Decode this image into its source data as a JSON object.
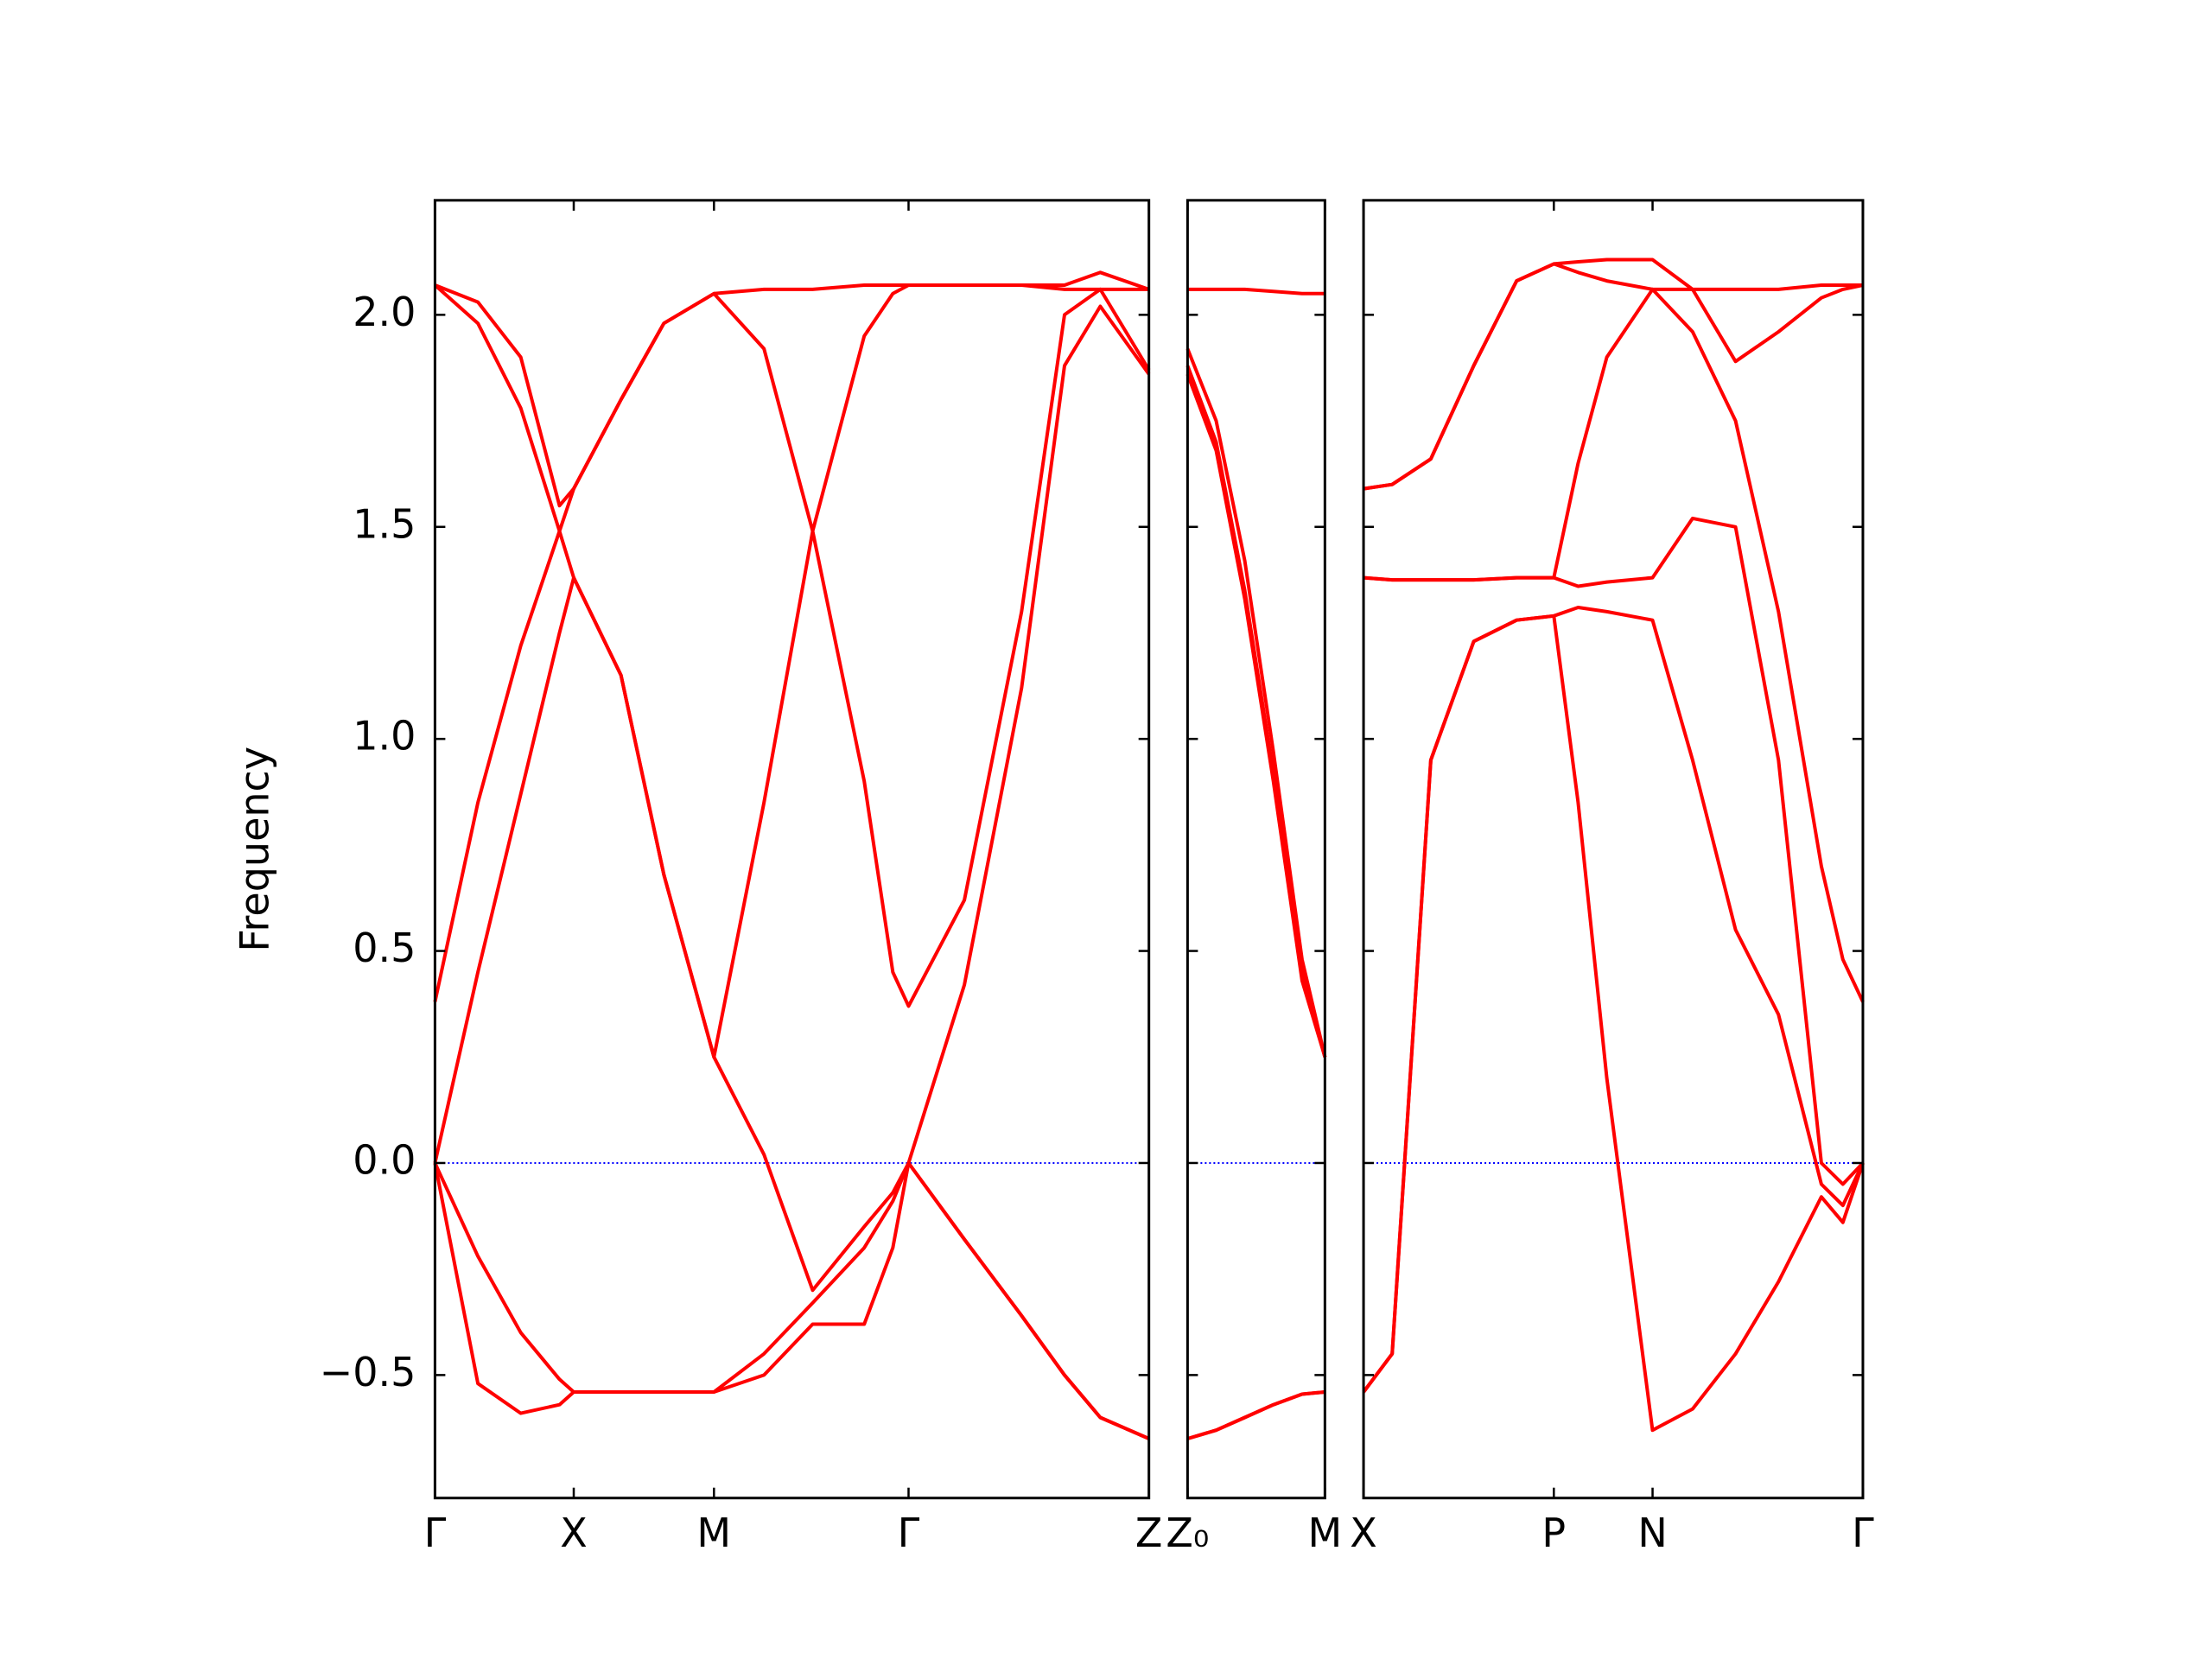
{
  "chart_data": [
    {
      "type": "line",
      "ylabel": "Frequency",
      "x": [
        0,
        0.3,
        0.6,
        0.87,
        0.97,
        1.3,
        1.6,
        1.95,
        2.3,
        2.64,
        3.0,
        3.2,
        3.31,
        3.7,
        4.1,
        4.4,
        4.65,
        4.99
      ],
      "xlim": [
        0,
        4.99
      ],
      "xticks": [
        {
          "value": 0,
          "label": "Γ"
        },
        {
          "value": 0.97,
          "label": "X"
        },
        {
          "value": 1.95,
          "label": "M"
        },
        {
          "value": 3.31,
          "label": "Γ"
        },
        {
          "value": 4.99,
          "label": "Z"
        }
      ],
      "ylim": [
        -0.79,
        2.27
      ],
      "yticks": [
        {
          "value": -0.5,
          "label": "−0.5"
        },
        {
          "value": 0,
          "label": "0.0"
        },
        {
          "value": 0.5,
          "label": "0.5"
        },
        {
          "value": 1,
          "label": "1.0"
        },
        {
          "value": 1.5,
          "label": "1.5"
        },
        {
          "value": 2,
          "label": "2.0"
        }
      ],
      "hline": {
        "y": 0,
        "color": "#0000ff",
        "style": "dotted"
      },
      "series": [
        {
          "color": "#ff0000",
          "values": [
            2.07,
            2.03,
            1.9,
            1.55,
            1.59,
            1.8,
            1.98,
            2.05,
            2.06,
            2.06,
            2.07,
            2.07,
            2.07,
            2.07,
            2.07,
            2.07,
            2.1,
            2.06
          ]
        },
        {
          "color": "#ff0000",
          "values": [
            2.07,
            1.98,
            1.78,
            1.49,
            1.59,
            1.8,
            1.98,
            2.05,
            1.92,
            1.49,
            1.95,
            2.05,
            2.07,
            2.07,
            2.07,
            2.06,
            2.06,
            2.06
          ]
        },
        {
          "color": "#ff0000",
          "values": [
            0.38,
            0.85,
            1.22,
            1.49,
            1.38,
            1.15,
            0.68,
            0.25,
            0.85,
            1.49,
            0.9,
            0.45,
            0.37,
            0.62,
            1.3,
            2.0,
            2.06,
            1.87
          ]
        },
        {
          "color": "#ff0000",
          "values": [
            0,
            0.45,
            0.87,
            1.25,
            1.38,
            1.15,
            0.68,
            0.25,
            0.02,
            -0.3,
            -0.15,
            -0.07,
            0,
            0.42,
            1.12,
            1.88,
            2.02,
            1.86
          ]
        },
        {
          "color": "#ff0000",
          "values": [
            0,
            -0.22,
            -0.4,
            -0.51,
            -0.54,
            -0.54,
            -0.54,
            -0.54,
            -0.45,
            -0.33,
            -0.2,
            -0.09,
            0,
            -0.18,
            -0.36,
            -0.5,
            -0.6,
            -0.65
          ]
        },
        {
          "color": "#ff0000",
          "values": [
            0,
            -0.52,
            -0.59,
            -0.57,
            -0.54,
            -0.54,
            -0.54,
            -0.54,
            -0.5,
            -0.38,
            -0.38,
            -0.2,
            0,
            -0.18,
            -0.36,
            -0.5,
            -0.6,
            -0.65
          ]
        }
      ]
    },
    {
      "type": "line",
      "x": [
        0,
        0.2,
        0.4,
        0.6,
        0.8,
        0.96
      ],
      "xlim": [
        0,
        0.96
      ],
      "xticks": [
        {
          "value": 0,
          "label": "Z₀"
        },
        {
          "value": 0.96,
          "label": "M"
        }
      ],
      "ylim": [
        -0.79,
        2.27
      ],
      "hline": {
        "y": 0,
        "color": "#0000ff",
        "style": "dotted"
      },
      "series": [
        {
          "color": "#ff0000",
          "values": [
            2.06,
            2.06,
            2.06,
            2.055,
            2.05,
            2.05
          ]
        },
        {
          "color": "#ff0000",
          "values": [
            1.92,
            1.75,
            1.42,
            0.97,
            0.48,
            0.25
          ]
        },
        {
          "color": "#ff0000",
          "values": [
            1.88,
            1.7,
            1.35,
            0.92,
            0.45,
            0.25
          ]
        },
        {
          "color": "#ff0000",
          "values": [
            1.86,
            1.68,
            1.33,
            0.9,
            0.43,
            0.25
          ]
        },
        {
          "color": "#ff0000",
          "values": [
            -0.65,
            -0.63,
            -0.6,
            -0.57,
            -0.545,
            -0.54
          ]
        },
        {
          "color": "#ff0000",
          "values": [
            -0.65,
            -0.63,
            -0.6,
            -0.57,
            -0.545,
            -0.54
          ]
        }
      ]
    },
    {
      "type": "line",
      "x": [
        0,
        0.2,
        0.47,
        0.77,
        1.07,
        1.33,
        1.5,
        1.7,
        2.02,
        2.3,
        2.6,
        2.9,
        3.2,
        3.35,
        3.49
      ],
      "xlim": [
        0,
        3.49
      ],
      "xticks": [
        {
          "value": 0,
          "label": "X"
        },
        {
          "value": 1.33,
          "label": "P"
        },
        {
          "value": 2.02,
          "label": "N"
        },
        {
          "value": 3.49,
          "label": "Γ"
        }
      ],
      "ylim": [
        -0.79,
        2.27
      ],
      "hline": {
        "y": 0,
        "color": "#0000ff",
        "style": "dotted"
      },
      "series": [
        {
          "color": "#ff0000",
          "values": [
            1.59,
            1.6,
            1.66,
            1.88,
            2.08,
            2.12,
            2.125,
            2.13,
            2.13,
            2.06,
            2.06,
            2.06,
            2.07,
            2.07,
            2.07
          ]
        },
        {
          "color": "#ff0000",
          "values": [
            1.59,
            1.6,
            1.66,
            1.88,
            2.08,
            2.12,
            2.1,
            2.08,
            2.06,
            2.06,
            1.89,
            1.96,
            2.04,
            2.06,
            2.07
          ]
        },
        {
          "color": "#ff0000",
          "values": [
            1.38,
            1.375,
            1.375,
            1.375,
            1.38,
            1.38,
            1.65,
            1.9,
            2.06,
            1.96,
            1.75,
            1.3,
            0.7,
            0.48,
            0.38
          ]
        },
        {
          "color": "#ff0000",
          "values": [
            1.38,
            1.375,
            1.375,
            1.375,
            1.38,
            1.38,
            1.36,
            1.37,
            1.38,
            1.52,
            1.5,
            0.95,
            0.0,
            -0.05,
            0
          ]
        },
        {
          "color": "#ff0000",
          "values": [
            -0.54,
            -0.45,
            0.95,
            1.23,
            1.28,
            1.29,
            1.31,
            1.3,
            1.28,
            0.95,
            0.55,
            0.35,
            -0.05,
            -0.1,
            0
          ]
        },
        {
          "color": "#ff0000",
          "values": [
            -0.54,
            -0.45,
            0.95,
            1.23,
            1.28,
            1.29,
            0.85,
            0.2,
            -0.63,
            -0.58,
            -0.45,
            -0.28,
            -0.08,
            -0.14,
            0
          ]
        }
      ]
    }
  ]
}
